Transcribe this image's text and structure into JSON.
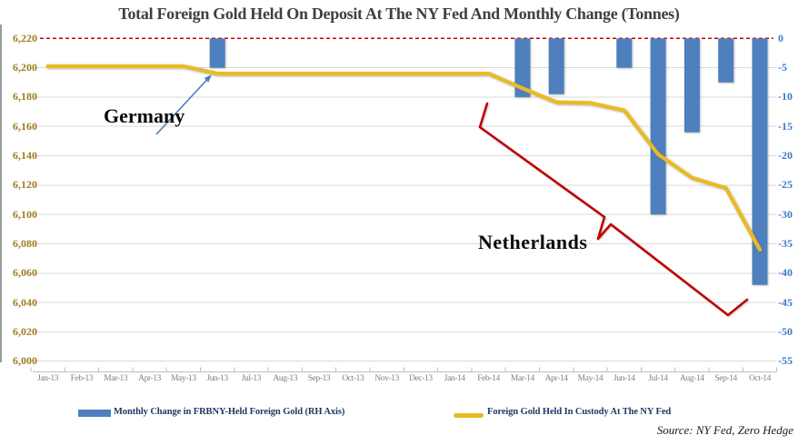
{
  "title": "Total Foreign Gold Held On Deposit At The NY Fed And Monthly Change (Tonnes)",
  "source_note": "Source: NY Fed, Zero Hedge",
  "annotations": {
    "germany": "Germany",
    "netherlands": "Netherlands"
  },
  "legend": {
    "bar_label": "Monthly Change in FRBNY-Held Foreign Gold (RH Axis)",
    "line_label": "Foreign Gold Held In Custody At The NY Fed"
  },
  "colors": {
    "bar": "#4d80bd",
    "line": "#e9bb24",
    "zero_line": "#c00000",
    "annotation": "#c00000",
    "arrow": "#4a7ebb",
    "grid": "#dadada",
    "axis_line": "#bfbfbf",
    "left_axis_text": "#9d7d22",
    "right_axis_text": "#3b79c6",
    "x_axis_text": "#7f7f7f",
    "title_text": "#3f3f3f",
    "legend_text": "#1f3864"
  },
  "chart_data": {
    "type": "combo (bar + line, dual axis)",
    "categories": [
      "Jan-13",
      "Feb-13",
      "Mar-13",
      "Apr-13",
      "May-13",
      "Jun-13",
      "Jul-13",
      "Aug-13",
      "Sep-13",
      "Oct-13",
      "Nov-13",
      "Dec-13",
      "Jan-14",
      "Feb-14",
      "Mar-14",
      "Apr-14",
      "May-14",
      "Jun-14",
      "Jul-14",
      "Aug-14",
      "Sep-14",
      "Oct-14"
    ],
    "series": [
      {
        "name": "Monthly Change in FRBNY-Held Foreign Gold (RH Axis)",
        "type": "bar",
        "axis": "right",
        "values": [
          null,
          null,
          null,
          null,
          null,
          -5,
          null,
          null,
          null,
          null,
          null,
          null,
          null,
          null,
          -10,
          -9.5,
          null,
          -5,
          -30,
          -16,
          -7.5,
          -42
        ]
      },
      {
        "name": "Foreign Gold Held In Custody At The NY Fed",
        "type": "line",
        "axis": "left",
        "values": [
          6201,
          6201,
          6201,
          6201,
          6201,
          6196,
          6196,
          6196,
          6196,
          6196,
          6196,
          6196,
          6196,
          6196,
          6186,
          6176.5,
          6176,
          6171,
          6141,
          6125,
          6118,
          6076
        ]
      }
    ],
    "left_axis": {
      "min": 6000,
      "max": 6220,
      "step": 20,
      "tick_labels": [
        "6,220",
        "6,200",
        "6,180",
        "6,160",
        "6,140",
        "6,120",
        "6,100",
        "6,080",
        "6,060",
        "6,040",
        "6,020",
        "6,000"
      ]
    },
    "right_axis": {
      "min": -55,
      "max": 0,
      "step": 5,
      "tick_labels": [
        "0",
        "-5",
        "-10",
        "-15",
        "-20",
        "-25",
        "-30",
        "-35",
        "-40",
        "-45",
        "-50",
        "-55"
      ]
    },
    "zero_reference_line": {
      "axis": "right",
      "value": 0,
      "style": "dashed"
    },
    "grid": true,
    "legend_position": "bottom"
  }
}
